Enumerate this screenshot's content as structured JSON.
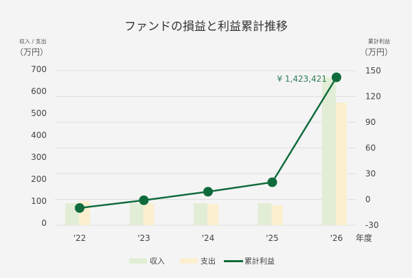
{
  "chart_data": {
    "type": "bar+line",
    "title": "ファンドの損益と利益累計推移",
    "left_axis": {
      "label": "収入 / 支出",
      "unit": "（万円）",
      "ticks": [
        700,
        600,
        500,
        400,
        300,
        200,
        100,
        0
      ],
      "range": [
        0,
        700
      ]
    },
    "right_axis": {
      "label": "累計利益",
      "unit": "（万円）",
      "ticks": [
        150,
        120,
        90,
        60,
        30,
        0,
        -30
      ],
      "range": [
        -30,
        150
      ]
    },
    "xlabel": "年度",
    "categories": [
      "'22",
      "'23",
      "'24",
      "'25",
      "'26"
    ],
    "series": [
      {
        "name": "収入",
        "type": "bar",
        "axis": "left",
        "color": "#e2edd6",
        "values": [
          100,
          100,
          100,
          100,
          670
        ]
      },
      {
        "name": "支出",
        "type": "bar",
        "axis": "left",
        "color": "#fbefd0",
        "values": [
          110,
          100,
          95,
          90,
          555
        ]
      },
      {
        "name": "累計利益",
        "type": "line",
        "axis": "right",
        "color": "#0f6b3c",
        "values": [
          -10,
          -1,
          9,
          20,
          142.3
        ]
      }
    ],
    "annotation": "¥ 1,423,421",
    "grid": true,
    "legend": "bottom"
  }
}
